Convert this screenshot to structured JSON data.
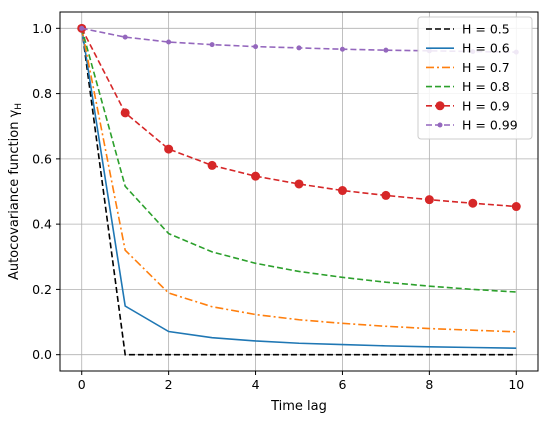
{
  "chart_data": {
    "type": "line",
    "title": "",
    "xlabel": "Time lag",
    "ylabel_main": "Autocovariance function γ",
    "ylabel_sub": "H",
    "xlim": [
      -0.5,
      10.5
    ],
    "ylim": [
      -0.05,
      1.05
    ],
    "xticks": [
      0,
      2,
      4,
      6,
      8,
      10
    ],
    "yticks": [
      0.0,
      0.2,
      0.4,
      0.6,
      0.8,
      1.0
    ],
    "xtick_labels": [
      "0",
      "2",
      "4",
      "6",
      "8",
      "10"
    ],
    "ytick_labels": [
      "0.0",
      "0.2",
      "0.4",
      "0.6",
      "0.8",
      "1.0"
    ],
    "grid": true,
    "legend_position": "top-right",
    "x": [
      0,
      1,
      2,
      3,
      4,
      5,
      6,
      7,
      8,
      9,
      10
    ],
    "series": [
      {
        "name": "H = 0.5",
        "color": "#000000",
        "linestyle": "dashed",
        "marker": "none",
        "values": [
          1.0,
          0.0,
          0.0,
          0.0,
          0.0,
          0.0,
          0.0,
          0.0,
          0.0,
          0.0,
          0.0
        ]
      },
      {
        "name": "H = 0.6",
        "color": "#1f77b4",
        "linestyle": "solid",
        "marker": "none",
        "values": [
          1.0,
          0.149,
          0.071,
          0.052,
          0.042,
          0.035,
          0.031,
          0.027,
          0.024,
          0.022,
          0.02
        ]
      },
      {
        "name": "H = 0.7",
        "color": "#ff7f0e",
        "linestyle": "dashdot",
        "marker": "none",
        "values": [
          1.0,
          0.32,
          0.189,
          0.147,
          0.123,
          0.107,
          0.096,
          0.087,
          0.08,
          0.075,
          0.07
        ]
      },
      {
        "name": "H = 0.8",
        "color": "#2ca02c",
        "linestyle": "dashed",
        "marker": "none",
        "values": [
          1.0,
          0.516,
          0.371,
          0.315,
          0.28,
          0.255,
          0.237,
          0.222,
          0.21,
          0.2,
          0.192
        ]
      },
      {
        "name": "H = 0.9",
        "color": "#d62728",
        "linestyle": "dashed",
        "marker": "circle",
        "values": [
          1.0,
          0.741,
          0.63,
          0.58,
          0.547,
          0.523,
          0.503,
          0.488,
          0.475,
          0.464,
          0.454
        ]
      },
      {
        "name": "H = 0.99",
        "color": "#9467bd",
        "linestyle": "dashed",
        "marker": "small-circle",
        "values": [
          1.0,
          0.973,
          0.958,
          0.95,
          0.944,
          0.94,
          0.936,
          0.933,
          0.931,
          0.929,
          0.927
        ]
      }
    ]
  }
}
